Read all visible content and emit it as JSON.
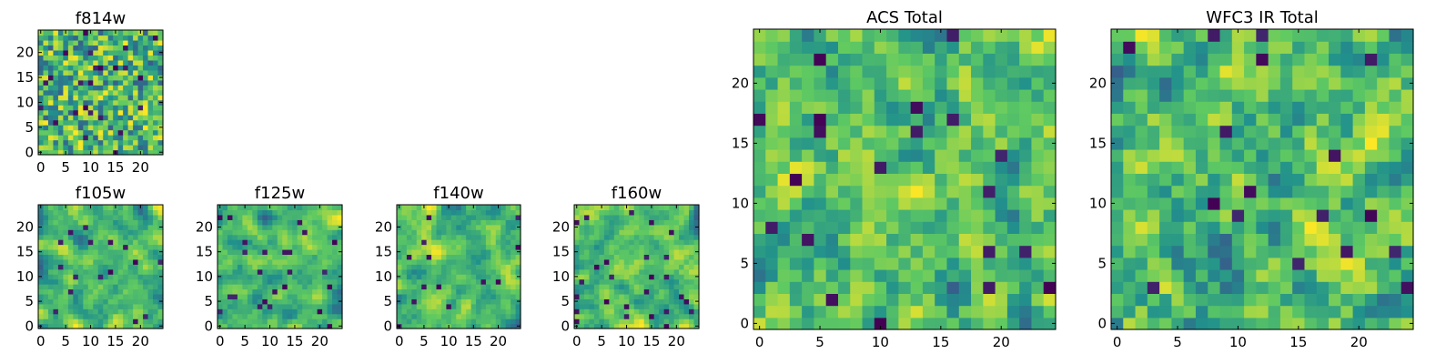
{
  "chart_data": [
    {
      "type": "heatmap",
      "title": "f814w",
      "grid_size": 25,
      "xticks": [
        0,
        5,
        10,
        15,
        20
      ],
      "yticks": [
        0,
        5,
        10,
        15,
        20
      ],
      "xlim": [
        0,
        25
      ],
      "ylim": [
        0,
        25
      ],
      "colormap": "viridis",
      "seed": 11,
      "smoothing": 0,
      "low_fraction": 0.04
    },
    {
      "type": "heatmap",
      "title": "f105w",
      "grid_size": 25,
      "xticks": [
        0,
        5,
        10,
        15,
        20
      ],
      "yticks": [
        0,
        5,
        10,
        15,
        20
      ],
      "xlim": [
        0,
        25
      ],
      "ylim": [
        0,
        25
      ],
      "colormap": "viridis",
      "seed": 23,
      "smoothing": 2,
      "low_fraction": 0.03
    },
    {
      "type": "heatmap",
      "title": "f125w",
      "grid_size": 25,
      "xticks": [
        0,
        5,
        10,
        15,
        20
      ],
      "yticks": [
        0,
        5,
        10,
        15,
        20
      ],
      "xlim": [
        0,
        25
      ],
      "ylim": [
        0,
        25
      ],
      "colormap": "viridis",
      "seed": 37,
      "smoothing": 2,
      "low_fraction": 0.03
    },
    {
      "type": "heatmap",
      "title": "f140w",
      "grid_size": 25,
      "xticks": [
        0,
        5,
        10,
        15,
        20
      ],
      "yticks": [
        0,
        5,
        10,
        15,
        20
      ],
      "xlim": [
        0,
        25
      ],
      "ylim": [
        0,
        25
      ],
      "colormap": "viridis",
      "seed": 41,
      "smoothing": 2,
      "low_fraction": 0.03
    },
    {
      "type": "heatmap",
      "title": "f160w",
      "grid_size": 25,
      "xticks": [
        0,
        5,
        10,
        15,
        20
      ],
      "yticks": [
        0,
        5,
        10,
        15,
        20
      ],
      "xlim": [
        0,
        25
      ],
      "ylim": [
        0,
        25
      ],
      "colormap": "viridis",
      "seed": 53,
      "smoothing": 2,
      "low_fraction": 0.03
    },
    {
      "type": "heatmap",
      "title": "ACS Total",
      "grid_size": 25,
      "xticks": [
        0,
        5,
        10,
        15,
        20
      ],
      "yticks": [
        0,
        5,
        10,
        15,
        20
      ],
      "xlim": [
        0,
        25
      ],
      "ylim": [
        0,
        25
      ],
      "colormap": "viridis",
      "seed": 67,
      "smoothing": 1,
      "low_fraction": 0.025
    },
    {
      "type": "heatmap",
      "title": "WFC3 IR Total",
      "grid_size": 25,
      "xticks": [
        0,
        5,
        10,
        15,
        20
      ],
      "yticks": [
        0,
        5,
        10,
        15,
        20
      ],
      "xlim": [
        0,
        25
      ],
      "ylim": [
        0,
        25
      ],
      "colormap": "viridis",
      "seed": 79,
      "smoothing": 1,
      "low_fraction": 0.02
    }
  ],
  "colors": {
    "viridis": [
      "#440154",
      "#3b528b",
      "#21918c",
      "#5ec962",
      "#fde725"
    ],
    "frame": "#000000",
    "background": "#ffffff"
  }
}
